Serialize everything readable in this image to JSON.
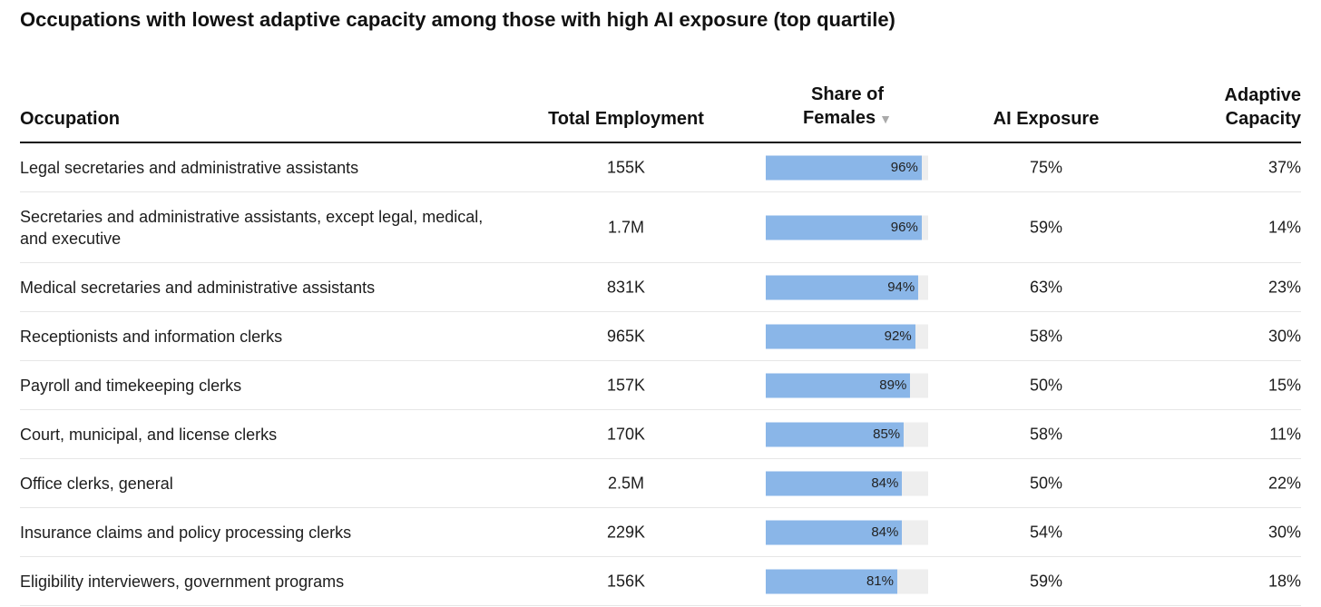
{
  "title": "Occupations with lowest adaptive capacity among those with high AI exposure (top quartile)",
  "columns": {
    "occupation": "Occupation",
    "employment": "Total Employment",
    "females_line1": "Share of",
    "females_line2": "Females",
    "sort_icon": "▼",
    "ai": "AI Exposure",
    "adaptive_line1": "Adaptive",
    "adaptive_line2": "Capacity"
  },
  "colors": {
    "bar": "#8ab6e8",
    "track": "#eeeeee"
  },
  "chart_data": {
    "type": "table",
    "title": "Occupations with lowest adaptive capacity among those with high AI exposure (top quartile)",
    "sorted_by": "Share of Females",
    "rows": [
      {
        "occupation": "Legal secretaries and administrative assistants",
        "employment": "155K",
        "females": 96,
        "females_label": "96%",
        "ai": "75%",
        "adaptive": "37%"
      },
      {
        "occupation": "Secretaries and administrative assistants, except legal, medical, and executive",
        "employment": "1.7M",
        "females": 96,
        "females_label": "96%",
        "ai": "59%",
        "adaptive": "14%"
      },
      {
        "occupation": "Medical secretaries and administrative assistants",
        "employment": "831K",
        "females": 94,
        "females_label": "94%",
        "ai": "63%",
        "adaptive": "23%"
      },
      {
        "occupation": "Receptionists and information clerks",
        "employment": "965K",
        "females": 92,
        "females_label": "92%",
        "ai": "58%",
        "adaptive": "30%"
      },
      {
        "occupation": "Payroll and timekeeping clerks",
        "employment": "157K",
        "females": 89,
        "females_label": "89%",
        "ai": "50%",
        "adaptive": "15%"
      },
      {
        "occupation": "Court, municipal, and license clerks",
        "employment": "170K",
        "females": 85,
        "females_label": "85%",
        "ai": "58%",
        "adaptive": "11%"
      },
      {
        "occupation": "Office clerks, general",
        "employment": "2.5M",
        "females": 84,
        "females_label": "84%",
        "ai": "50%",
        "adaptive": "22%"
      },
      {
        "occupation": "Insurance claims and policy processing clerks",
        "employment": "229K",
        "females": 84,
        "females_label": "84%",
        "ai": "54%",
        "adaptive": "30%"
      },
      {
        "occupation": "Eligibility interviewers, government programs",
        "employment": "156K",
        "females": 81,
        "females_label": "81%",
        "ai": "59%",
        "adaptive": "18%"
      }
    ]
  }
}
